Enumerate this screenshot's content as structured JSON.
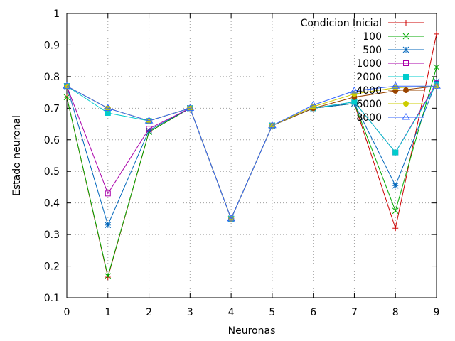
{
  "chart_data": {
    "type": "line",
    "title": "",
    "xlabel": "Neuronas",
    "ylabel": "Estado neuronal",
    "xlim": [
      0,
      9
    ],
    "ylim": [
      0.1,
      1
    ],
    "x_ticks": [
      "0",
      "1",
      "2",
      "3",
      "4",
      "5",
      "6",
      "7",
      "8",
      "9"
    ],
    "y_ticks": [
      "0.1",
      "0.2",
      "0.3",
      "0.4",
      "0.5",
      "0.6",
      "0.7",
      "0.8",
      "0.9",
      "1"
    ],
    "grid": true,
    "legend_position": "top-right",
    "x": [
      0,
      1,
      2,
      3,
      4,
      5,
      6,
      7,
      8,
      9
    ],
    "series": [
      {
        "name": "Condicion Inicial",
        "color": "#cc0000",
        "marker": "plus",
        "values": [
          0.735,
          0.165,
          0.625,
          0.7,
          0.35,
          0.645,
          0.7,
          0.715,
          0.32,
          0.935
        ]
      },
      {
        "name": "100",
        "color": "#00aa00",
        "marker": "cross",
        "values": [
          0.735,
          0.168,
          0.625,
          0.7,
          0.35,
          0.645,
          0.7,
          0.715,
          0.375,
          0.83
        ]
      },
      {
        "name": "500",
        "color": "#0066bb",
        "marker": "star",
        "values": [
          0.77,
          0.33,
          0.63,
          0.7,
          0.35,
          0.645,
          0.7,
          0.715,
          0.455,
          0.785
        ]
      },
      {
        "name": "1000",
        "color": "#aa00aa",
        "marker": "square",
        "values": [
          0.77,
          0.43,
          0.635,
          0.7,
          0.35,
          0.645,
          0.7,
          0.72,
          0.56,
          0.78
        ]
      },
      {
        "name": "2000",
        "color": "#00cccc",
        "marker": "filled-square",
        "values": [
          0.77,
          0.685,
          0.66,
          0.7,
          0.35,
          0.645,
          0.7,
          0.72,
          0.56,
          0.775
        ]
      },
      {
        "name": "4000",
        "color": "#994400",
        "marker": "filled-circle",
        "values": [
          0.77,
          0.7,
          0.66,
          0.7,
          0.35,
          0.645,
          0.7,
          0.735,
          0.755,
          0.77
        ]
      },
      {
        "name": "6000",
        "color": "#cccc00",
        "marker": "filled-circle",
        "values": [
          0.77,
          0.7,
          0.66,
          0.7,
          0.35,
          0.645,
          0.705,
          0.745,
          0.765,
          0.77
        ]
      },
      {
        "name": "8000",
        "color": "#3366ff",
        "marker": "triangle",
        "values": [
          0.77,
          0.7,
          0.66,
          0.7,
          0.35,
          0.645,
          0.71,
          0.755,
          0.77,
          0.77
        ]
      }
    ]
  }
}
